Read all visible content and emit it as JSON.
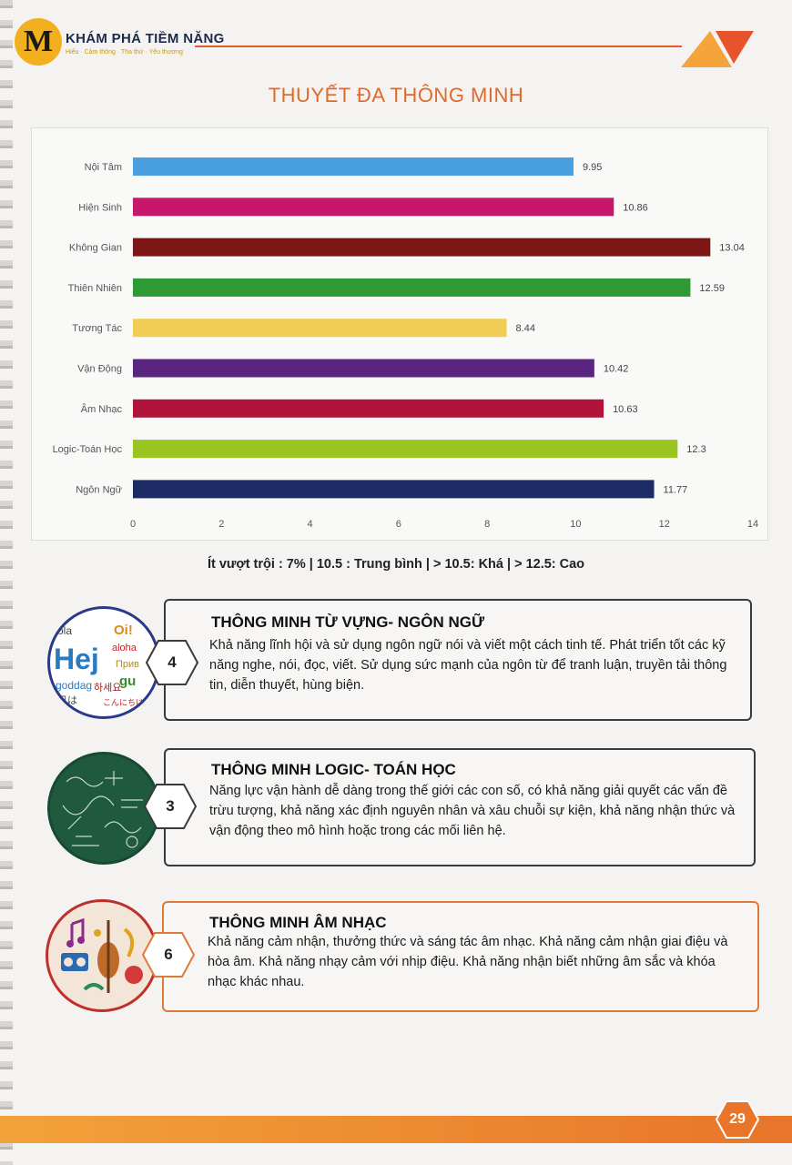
{
  "header": {
    "logo_letter": "M",
    "brand": "KHÁM PHÁ TIỀM NĂNG",
    "tagline": "Hiểu · Cảm thông · Tha thứ · Yêu thương"
  },
  "title": "THUYẾT ĐA THÔNG MINH",
  "chart_data": {
    "type": "bar",
    "orientation": "horizontal",
    "categories": [
      "Nội Tâm",
      "Hiện Sinh",
      "Không Gian",
      "Thiên Nhiên",
      "Tương Tác",
      "Vận Động",
      "Âm Nhạc",
      "Logic-Toán Học",
      "Ngôn Ngữ"
    ],
    "values": [
      9.95,
      10.86,
      13.04,
      12.59,
      8.44,
      10.42,
      10.63,
      12.3,
      11.77
    ],
    "value_labels": [
      "9.95",
      "10.86",
      "13.04",
      "12.59",
      "8.44",
      "10.42",
      "10.63",
      "12.3",
      "11.77"
    ],
    "colors": [
      "#4a9fe0",
      "#c8166a",
      "#7a1616",
      "#2e9a36",
      "#f2cd55",
      "#5a2580",
      "#b0143a",
      "#9ac41f",
      "#1e2c66"
    ],
    "xlim": [
      0,
      14
    ],
    "xticks": [
      "0",
      "2",
      "4",
      "6",
      "8",
      "10",
      "12",
      "14"
    ],
    "grid": false
  },
  "legend_text": "Ít vượt trội : 7% | 10.5 : Trung bình | > 10.5: Khá | > 12.5: Cao",
  "cards": [
    {
      "number": "4",
      "title": "THÔNG MINH TỪ VỰNG- NGÔN NGỮ",
      "body": "Khả năng lĩnh hội và sử dụng ngôn ngữ nói và viết một cách tinh tế. Phát triển tốt các kỹ năng nghe, nói, đọc, viết. Sử dụng sức mạnh của ngôn từ để tranh luận, truyền tải thông tin, diễn thuyết, hùng biện.",
      "image_words": [
        "Hej",
        "ola",
        "Oi!",
        "aloha",
        "goddag",
        "하세요",
        "Прив",
        "日は",
        "gu",
        "こんにちは"
      ]
    },
    {
      "number": "3",
      "title": "THÔNG MINH LOGIC- TOÁN HỌC",
      "body": "Năng lực vận hành dễ dàng trong thế giới các con số, có khả năng giải quyết các vấn đề trừu tượng, khả năng xác định nguyên nhân và xâu chuỗi sự kiện, khả năng nhận thức và vận động theo mô hình hoặc trong các mối liên hệ."
    },
    {
      "number": "6",
      "title": "THÔNG MINH ÂM NHẠC",
      "body": "Khả năng cảm nhận, thưởng thức và sáng tác âm nhạc. Khả năng cảm nhận giai điệu và hòa âm. Khả năng nhạy cảm với nhịp điệu. Khả năng nhận biết những âm sắc và khóa nhạc khác nhau."
    }
  ],
  "page_number": "29",
  "colors": {
    "accent_orange": "#e06a2a",
    "card_border_dark": "#3a3a3a",
    "card_border_orange": "#e07a3a"
  }
}
